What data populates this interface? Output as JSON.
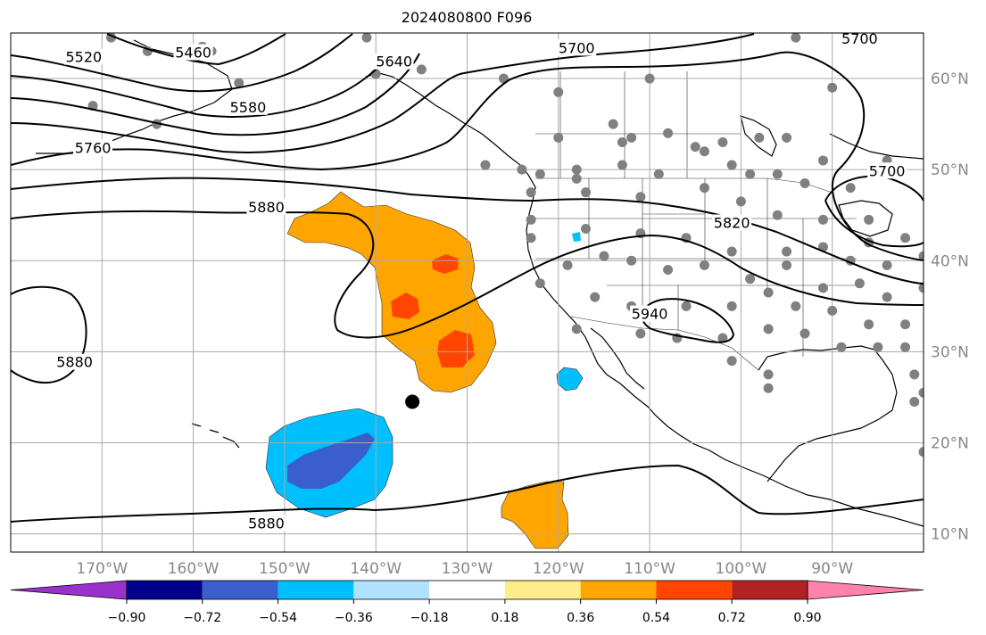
{
  "title": "2024080800 F096",
  "map": {
    "lon_min": -180,
    "lon_max": -80,
    "lat_min": 8,
    "lat_max": 65,
    "grid": true,
    "lon_ticks": [
      {
        "value": -170,
        "label": "170°W"
      },
      {
        "value": -160,
        "label": "160°W"
      },
      {
        "value": -150,
        "label": "150°W"
      },
      {
        "value": -140,
        "label": "140°W"
      },
      {
        "value": -130,
        "label": "130°W"
      },
      {
        "value": -120,
        "label": "120°W"
      },
      {
        "value": -110,
        "label": "110°W"
      },
      {
        "value": -100,
        "label": "100°W"
      },
      {
        "value": -90,
        "label": "90°W"
      }
    ],
    "lat_ticks": [
      {
        "value": 60,
        "label": "60°N"
      },
      {
        "value": 50,
        "label": "50°N"
      },
      {
        "value": 40,
        "label": "40°N"
      },
      {
        "value": 30,
        "label": "30°N"
      },
      {
        "value": 20,
        "label": "20°N"
      },
      {
        "value": 10,
        "label": "10°N"
      }
    ]
  },
  "contour_labels": [
    {
      "text": "5520",
      "lon": -172,
      "lat": 62.0
    },
    {
      "text": "5460",
      "lon": -160,
      "lat": 62.5
    },
    {
      "text": "5580",
      "lon": -154,
      "lat": 56.5
    },
    {
      "text": "5640",
      "lon": -138,
      "lat": 61.5
    },
    {
      "text": "5700",
      "lon": -118,
      "lat": 63.0
    },
    {
      "text": "5700",
      "lon": -87,
      "lat": 64.0
    },
    {
      "text": "5760",
      "lon": -171,
      "lat": 52.0
    },
    {
      "text": "5880",
      "lon": -152,
      "lat": 45.5
    },
    {
      "text": "5820",
      "lon": -101,
      "lat": 43.8
    },
    {
      "text": "5880",
      "lon": -173,
      "lat": 28.5
    },
    {
      "text": "5880",
      "lon": -152,
      "lat": 10.8
    },
    {
      "text": "5940",
      "lon": -110,
      "lat": 33.8
    },
    {
      "text": "5700",
      "lon": -84,
      "lat": 49.5
    }
  ],
  "stations": [
    [
      -169,
      64.5
    ],
    [
      -159,
      63.5
    ],
    [
      -165,
      63
    ],
    [
      -158,
      63
    ],
    [
      -171,
      57
    ],
    [
      -164,
      55
    ],
    [
      -155,
      59.5
    ],
    [
      -141,
      64.5
    ],
    [
      -135,
      61
    ],
    [
      -140,
      60.5
    ],
    [
      -126,
      60
    ],
    [
      -120,
      58.5
    ],
    [
      -110,
      60
    ],
    [
      -94,
      64.5
    ],
    [
      -90,
      59
    ],
    [
      -120,
      53.5
    ],
    [
      -114,
      55
    ],
    [
      -113,
      53
    ],
    [
      -112,
      53.5
    ],
    [
      -108,
      54
    ],
    [
      -105,
      52.5
    ],
    [
      -102,
      53
    ],
    [
      -104,
      52
    ],
    [
      -98,
      53.5
    ],
    [
      -95,
      53.5
    ],
    [
      -91,
      51
    ],
    [
      -84,
      51
    ],
    [
      -128,
      50.5
    ],
    [
      -124,
      50
    ],
    [
      -122,
      49.5
    ],
    [
      -118,
      49
    ],
    [
      -118,
      50
    ],
    [
      -113,
      50.5
    ],
    [
      -109,
      49.5
    ],
    [
      -101,
      50.5
    ],
    [
      -99,
      49.5
    ],
    [
      -96,
      49.5
    ],
    [
      -93,
      48.5
    ],
    [
      -88,
      48
    ],
    [
      -123,
      47.5
    ],
    [
      -117,
      47.5
    ],
    [
      -111,
      47
    ],
    [
      -104,
      48
    ],
    [
      -100,
      46.5
    ],
    [
      -96,
      45
    ],
    [
      -91,
      44.5
    ],
    [
      -86,
      44.5
    ],
    [
      -82,
      42.5
    ],
    [
      -123,
      44.5
    ],
    [
      -117,
      43.5
    ],
    [
      -111,
      43
    ],
    [
      -106,
      42.5
    ],
    [
      -101,
      41
    ],
    [
      -95,
      41
    ],
    [
      -91,
      41.5
    ],
    [
      -88,
      40
    ],
    [
      -86,
      42
    ],
    [
      -84,
      39.5
    ],
    [
      -80,
      40.5
    ],
    [
      -123,
      42.5
    ],
    [
      -119,
      39.5
    ],
    [
      -115,
      40.5
    ],
    [
      -112,
      40
    ],
    [
      -108,
      39
    ],
    [
      -104,
      39.5
    ],
    [
      -99,
      38
    ],
    [
      -95,
      39.5
    ],
    [
      -91,
      37
    ],
    [
      -87,
      37.5
    ],
    [
      -84,
      36
    ],
    [
      -80,
      37
    ],
    [
      -122,
      37.5
    ],
    [
      -116,
      36
    ],
    [
      -112,
      35
    ],
    [
      -106,
      35
    ],
    [
      -101,
      35
    ],
    [
      -97,
      36.5
    ],
    [
      -94,
      35
    ],
    [
      -90,
      34.5
    ],
    [
      -86,
      33
    ],
    [
      -82,
      33
    ],
    [
      -118,
      32.5
    ],
    [
      -111,
      32
    ],
    [
      -107,
      31.5
    ],
    [
      -102,
      31.5
    ],
    [
      -97,
      32.5
    ],
    [
      -93,
      32
    ],
    [
      -89,
      30.5
    ],
    [
      -85,
      30.5
    ],
    [
      -82,
      30.5
    ],
    [
      -81,
      27.5
    ],
    [
      -101,
      29
    ],
    [
      -97,
      27.5
    ],
    [
      -97,
      26
    ],
    [
      -80,
      25.5
    ],
    [
      -81,
      24.5
    ],
    [
      -80,
      19
    ]
  ],
  "shading": {
    "levels": [
      -0.9,
      -0.72,
      -0.54,
      -0.36,
      -0.18,
      0.18,
      0.36,
      0.54,
      0.72,
      0.9
    ],
    "colors": [
      "#9932cc",
      "#00008b",
      "#3a5fcd",
      "#00bfff",
      "#b0e2ff",
      "#ffffff",
      "#ffec8b",
      "#ffa500",
      "#ff4500",
      "#b22222",
      "#ff82ab"
    ],
    "tick_labels": [
      "−0.90",
      "−0.72",
      "−0.54",
      "−0.36",
      "−0.18",
      "0.18",
      "0.36",
      "0.54",
      "0.72",
      "0.90"
    ]
  },
  "storm_marker": {
    "lon": -136,
    "lat": 24.5
  }
}
